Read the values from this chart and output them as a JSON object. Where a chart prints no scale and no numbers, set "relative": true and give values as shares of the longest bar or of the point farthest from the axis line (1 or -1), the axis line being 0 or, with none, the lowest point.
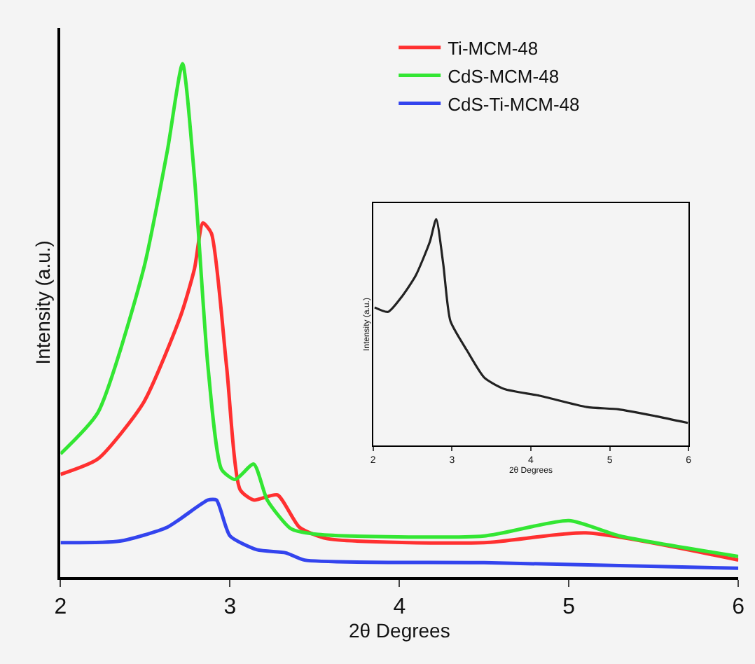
{
  "chart_data": [
    {
      "type": "line",
      "xlabel": "2θ Degrees",
      "ylabel": "Intensity (a.u.)",
      "relative": true,
      "xlim": [
        2,
        6
      ],
      "xticks": [
        2,
        3,
        4,
        5,
        6
      ],
      "grid": false,
      "legend": "top right",
      "marker": "none",
      "line_style": "solid",
      "series": [
        {
          "name": "Ti-MCM-48",
          "color": "#ff3030",
          "x": [
            2.0,
            2.22,
            2.49,
            2.71,
            2.79,
            2.84,
            2.89,
            2.98,
            3.06,
            3.14,
            3.28,
            3.41,
            3.57,
            4.5,
            5.1,
            6.0
          ],
          "values": [
            0.2,
            0.23,
            0.34,
            0.51,
            0.6,
            0.69,
            0.67,
            0.41,
            0.17,
            0.15,
            0.16,
            0.097,
            0.075,
            0.067,
            0.086,
            0.033
          ]
        },
        {
          "name": "CdS-MCM-48",
          "color": "#33e633",
          "x": [
            2.0,
            2.22,
            2.49,
            2.63,
            2.72,
            2.79,
            2.87,
            2.95,
            3.03,
            3.14,
            3.22,
            3.36,
            3.52,
            4.5,
            5.0,
            5.3,
            6.0
          ],
          "values": [
            0.24,
            0.32,
            0.6,
            0.83,
            1.0,
            0.78,
            0.41,
            0.21,
            0.19,
            0.22,
            0.15,
            0.094,
            0.083,
            0.08,
            0.11,
            0.08,
            0.04
          ]
        },
        {
          "name": "CdS-Ti-MCM-48",
          "color": "#3344ee",
          "x": [
            2.0,
            2.35,
            2.63,
            2.87,
            2.92,
            3.0,
            3.16,
            3.33,
            3.44,
            4.5,
            6.0
          ],
          "values": [
            0.067,
            0.07,
            0.097,
            0.15,
            0.15,
            0.08,
            0.053,
            0.047,
            0.033,
            0.028,
            0.017
          ]
        }
      ]
    },
    {
      "type": "line",
      "xlabel": "2θ Degrees",
      "ylabel": "Intensity (a.u.)",
      "relative": true,
      "xlim": [
        2,
        6
      ],
      "xticks": [
        2,
        3,
        4,
        5,
        6
      ],
      "grid": false,
      "legend": false,
      "marker": "none",
      "line_style": "solid",
      "series": [
        {
          "color": "#222222",
          "x": [
            2.02,
            2.19,
            2.37,
            2.54,
            2.72,
            2.8,
            2.89,
            2.98,
            3.19,
            3.41,
            3.66,
            4.11,
            4.71,
            5.11,
            5.58,
            5.99
          ],
          "values": [
            0.61,
            0.59,
            0.66,
            0.75,
            0.9,
            1.0,
            0.8,
            0.55,
            0.42,
            0.3,
            0.25,
            0.22,
            0.17,
            0.16,
            0.13,
            0.1
          ]
        }
      ]
    }
  ]
}
